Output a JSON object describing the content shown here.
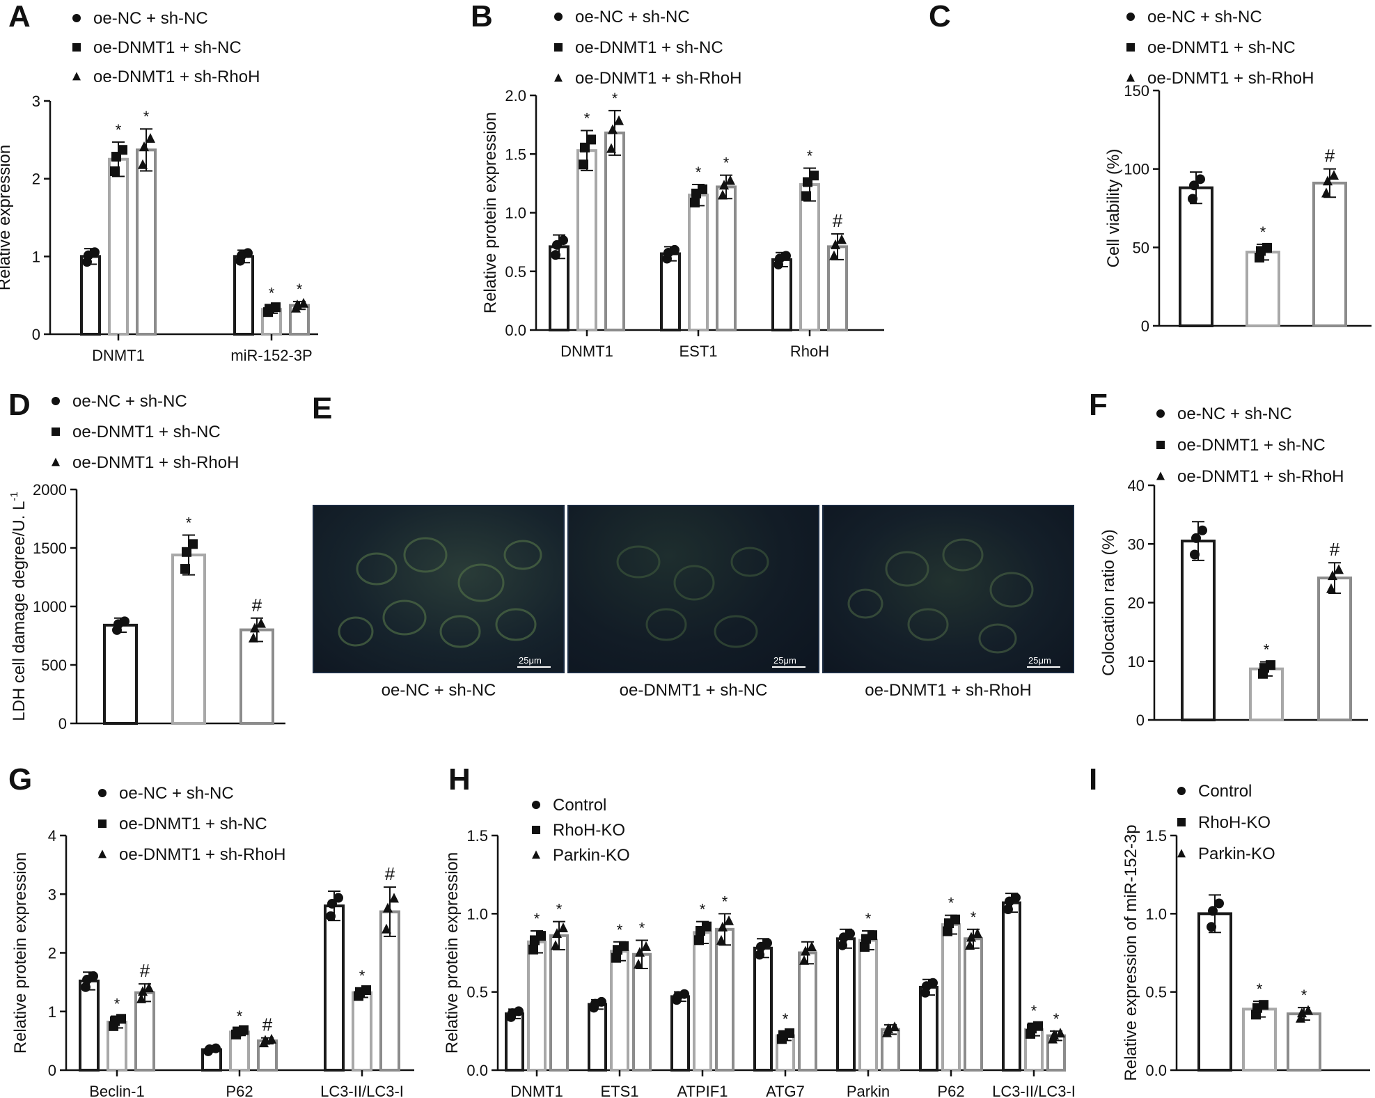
{
  "panels": [
    {
      "letter": "A",
      "chart_data": {
        "type": "bar",
        "ylabel": "Relative expression",
        "ylim": [
          0,
          3
        ],
        "yticks": [
          0,
          1,
          2,
          3
        ],
        "categories": [
          "DNMT1",
          "miR-152-3P"
        ],
        "series": [
          {
            "name": "oe-NC + sh-NC",
            "marker": "circle",
            "values": [
              1.0,
              1.0
            ],
            "errors": [
              0.1,
              0.08
            ],
            "annotations": [
              "",
              ""
            ]
          },
          {
            "name": "oe-DNMT1 + sh-NC",
            "marker": "square",
            "values": [
              2.25,
              0.32
            ],
            "errors": [
              0.22,
              0.05
            ],
            "annotations": [
              "*",
              "*"
            ]
          },
          {
            "name": "oe-DNMT1 + sh-RhoH",
            "marker": "triangle",
            "values": [
              2.37,
              0.37
            ],
            "errors": [
              0.27,
              0.05
            ],
            "annotations": [
              "*",
              "*"
            ]
          }
        ]
      }
    },
    {
      "letter": "B",
      "chart_data": {
        "type": "bar",
        "ylabel": "Relative protein expression",
        "ylim": [
          0,
          2.0
        ],
        "yticks": [
          "0.0",
          "0.5",
          "1.0",
          "1.5",
          "2.0"
        ],
        "categories": [
          "DNMT1",
          "EST1",
          "RhoH"
        ],
        "series": [
          {
            "name": "oe-NC + sh-NC",
            "marker": "circle",
            "values": [
              0.71,
              0.65,
              0.6
            ],
            "errors": [
              0.1,
              0.06,
              0.06
            ],
            "annotations": [
              "",
              "",
              ""
            ]
          },
          {
            "name": "oe-DNMT1 + sh-NC",
            "marker": "square",
            "values": [
              1.53,
              1.15,
              1.24
            ],
            "errors": [
              0.17,
              0.09,
              0.14
            ],
            "annotations": [
              "*",
              "*",
              "*"
            ]
          },
          {
            "name": "oe-DNMT1 + sh-RhoH",
            "marker": "triangle",
            "values": [
              1.68,
              1.22,
              0.71
            ],
            "errors": [
              0.19,
              0.1,
              0.11
            ],
            "annotations": [
              "*",
              "*",
              "#"
            ]
          }
        ]
      }
    },
    {
      "letter": "C",
      "chart_data": {
        "type": "bar",
        "ylabel": "Cell viability (%)",
        "ylim": [
          0,
          150
        ],
        "yticks": [
          0,
          50,
          100,
          150
        ],
        "categories": [
          ""
        ],
        "series": [
          {
            "name": "oe-NC + sh-NC",
            "marker": "circle",
            "values": [
              88
            ],
            "errors": [
              10
            ],
            "annotations": [
              ""
            ]
          },
          {
            "name": "oe-DNMT1 + sh-NC",
            "marker": "square",
            "values": [
              47
            ],
            "errors": [
              5
            ],
            "annotations": [
              "*"
            ]
          },
          {
            "name": "oe-DNMT1 + sh-RhoH",
            "marker": "triangle",
            "values": [
              91
            ],
            "errors": [
              9
            ],
            "annotations": [
              "#"
            ]
          }
        ]
      }
    },
    {
      "letter": "D",
      "chart_data": {
        "type": "bar",
        "ylabel": "LDH cell damage degree/U. L",
        "ylabel_sup": "-1",
        "ylim": [
          0,
          2000
        ],
        "yticks": [
          0,
          500,
          1000,
          1500,
          2000
        ],
        "categories": [
          ""
        ],
        "series": [
          {
            "name": "oe-NC + sh-NC",
            "marker": "circle",
            "values": [
              840
            ],
            "errors": [
              60
            ],
            "annotations": [
              ""
            ]
          },
          {
            "name": "oe-DNMT1 + sh-NC",
            "marker": "square",
            "values": [
              1440
            ],
            "errors": [
              170
            ],
            "annotations": [
              "*"
            ]
          },
          {
            "name": "oe-DNMT1 + sh-RhoH",
            "marker": "triangle",
            "values": [
              800
            ],
            "errors": [
              100
            ],
            "annotations": [
              "#"
            ]
          }
        ]
      }
    },
    {
      "letter": "F",
      "chart_data": {
        "type": "bar",
        "ylabel": "Colocation ratio (%)",
        "ylim": [
          0,
          40
        ],
        "yticks": [
          0,
          10,
          20,
          30,
          40
        ],
        "categories": [
          ""
        ],
        "series": [
          {
            "name": "oe-NC + sh-NC",
            "marker": "circle",
            "values": [
              30.5
            ],
            "errors": [
              3.3
            ],
            "annotations": [
              ""
            ]
          },
          {
            "name": "oe-DNMT1 + sh-NC",
            "marker": "square",
            "values": [
              8.7
            ],
            "errors": [
              1.2
            ],
            "annotations": [
              "*"
            ]
          },
          {
            "name": "oe-DNMT1 + sh-RhoH",
            "marker": "triangle",
            "values": [
              24.2
            ],
            "errors": [
              2.6
            ],
            "annotations": [
              "#"
            ]
          }
        ]
      }
    },
    {
      "letter": "G",
      "chart_data": {
        "type": "bar",
        "ylabel": "Relative protein expression",
        "ylim": [
          0,
          4
        ],
        "yticks": [
          0,
          1,
          2,
          3,
          4
        ],
        "categories": [
          "Beclin-1",
          "P62",
          "LC3-II/LC3-I"
        ],
        "series": [
          {
            "name": "oe-NC + sh-NC",
            "marker": "circle",
            "values": [
              1.52,
              0.35,
              2.8
            ],
            "errors": [
              0.15,
              0.04,
              0.25
            ],
            "annotations": [
              "",
              "",
              ""
            ]
          },
          {
            "name": "oe-DNMT1 + sh-NC",
            "marker": "square",
            "values": [
              0.82,
              0.65,
              1.32
            ],
            "errors": [
              0.1,
              0.06,
              0.08
            ],
            "annotations": [
              "*",
              "*",
              "*"
            ]
          },
          {
            "name": "oe-DNMT1 + sh-RhoH",
            "marker": "triangle",
            "values": [
              1.32,
              0.5,
              2.7
            ],
            "errors": [
              0.15,
              0.05,
              0.42
            ],
            "annotations": [
              "#",
              "#",
              "#"
            ]
          }
        ]
      }
    },
    {
      "letter": "H",
      "chart_data": {
        "type": "bar",
        "ylabel": "Relative protein expression",
        "ylim": [
          0,
          1.5
        ],
        "yticks": [
          "0.0",
          "0.5",
          "1.0",
          "1.5"
        ],
        "categories": [
          "DNMT1",
          "ETS1",
          "ATPIF1",
          "ATG7",
          "Parkin",
          "P62",
          "LC3-II/LC3-I"
        ],
        "series": [
          {
            "name": "Control",
            "marker": "circle",
            "values": [
              0.36,
              0.42,
              0.47,
              0.78,
              0.84,
              0.53,
              1.07
            ],
            "errors": [
              0.03,
              0.03,
              0.03,
              0.06,
              0.06,
              0.05,
              0.06
            ],
            "annotations": [
              "",
              "",
              "",
              "",
              "",
              "",
              ""
            ]
          },
          {
            "name": "RhoH-KO",
            "marker": "square",
            "values": [
              0.82,
              0.76,
              0.88,
              0.22,
              0.83,
              0.93,
              0.26
            ],
            "errors": [
              0.07,
              0.06,
              0.07,
              0.03,
              0.06,
              0.06,
              0.04
            ],
            "annotations": [
              "*",
              "*",
              "*",
              "*",
              "*",
              "*",
              "*"
            ]
          },
          {
            "name": "Parkin-KO",
            "marker": "triangle",
            "values": [
              0.86,
              0.74,
              0.9,
              0.75,
              0.26,
              0.84,
              0.22
            ],
            "errors": [
              0.09,
              0.09,
              0.1,
              0.07,
              0.03,
              0.06,
              0.03
            ],
            "annotations": [
              "*",
              "*",
              "*",
              "",
              "",
              "*",
              "*"
            ]
          }
        ]
      }
    },
    {
      "letter": "I",
      "chart_data": {
        "type": "bar",
        "ylabel": "Relative expression of miR-152-3p",
        "ylim": [
          0,
          1.5
        ],
        "yticks": [
          "0.0",
          "0.5",
          "1.0",
          "1.5"
        ],
        "categories": [
          ""
        ],
        "series": [
          {
            "name": "Control",
            "marker": "circle",
            "values": [
              1.0
            ],
            "errors": [
              0.12
            ],
            "annotations": [
              ""
            ]
          },
          {
            "name": "RhoH-KO",
            "marker": "square",
            "values": [
              0.39
            ],
            "errors": [
              0.05
            ],
            "annotations": [
              "*"
            ]
          },
          {
            "name": "Parkin-KO",
            "marker": "triangle",
            "values": [
              0.36
            ],
            "errors": [
              0.04
            ],
            "annotations": [
              "*"
            ]
          }
        ]
      }
    }
  ],
  "panel_e": {
    "letter": "E",
    "images": [
      {
        "caption": "oe-NC + sh-NC",
        "scale": "25μm"
      },
      {
        "caption": "oe-DNMT1 + sh-NC",
        "scale": "25μm"
      },
      {
        "caption": "oe-DNMT1 + sh-RhoH",
        "scale": "25μm"
      }
    ]
  },
  "colors": {
    "series": [
      "#1a1a1a",
      "#a8a8a8",
      "#8c8c8c"
    ],
    "axis": "#1a1a1a"
  }
}
